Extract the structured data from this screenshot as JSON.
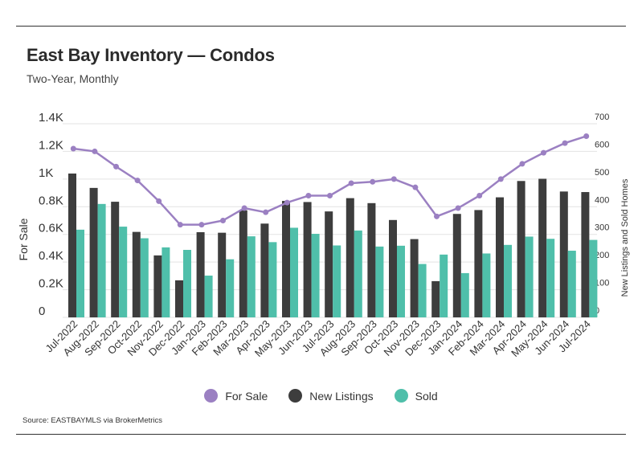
{
  "header": {
    "title": "East Bay Inventory — Condos",
    "subtitle": "Two-Year, Monthly"
  },
  "source": "Source:  EASTBAYMLS via BrokerMetrics",
  "colors": {
    "for_sale": "#9b80c2",
    "new_listings": "#3d3d3d",
    "sold": "#4fbfaa",
    "grid": "#e3e3e3"
  },
  "chart_data": {
    "type": "bar",
    "categories": [
      "Jul-2022",
      "Aug-2022",
      "Sep-2022",
      "Oct-2022",
      "Nov-2022",
      "Dec-2022",
      "Jan-2023",
      "Feb-2023",
      "Mar-2023",
      "Apr-2023",
      "May-2023",
      "Jun-2023",
      "Jul-2023",
      "Aug-2023",
      "Sep-2023",
      "Oct-2023",
      "Nov-2023",
      "Dec-2023",
      "Jan-2024",
      "Feb-2024",
      "Mar-2024",
      "Apr-2024",
      "May-2024",
      "Jun-2024",
      "Jul-2024"
    ],
    "ylabel_left": "For Sale",
    "ylabel_right": "New Listings and Sold Homes",
    "y_left": {
      "lim": [
        0,
        1400
      ],
      "ticks": [
        "0",
        "0.2K",
        "0.4K",
        "0.6K",
        "0.8K",
        "1K",
        "1.2K",
        "1.4K"
      ]
    },
    "y_right": {
      "lim": [
        0,
        700
      ],
      "ticks": [
        "0",
        "100",
        "200",
        "300",
        "400",
        "500",
        "600",
        "700"
      ]
    },
    "grid": true,
    "legend_position": "bottom",
    "series": [
      {
        "name": "For Sale",
        "type": "line",
        "axis": "left",
        "values": [
          1220,
          1200,
          1090,
          990,
          840,
          670,
          670,
          700,
          790,
          760,
          830,
          880,
          880,
          970,
          980,
          1000,
          940,
          730,
          790,
          880,
          1000,
          1110,
          1190,
          1260,
          1310
        ]
      },
      {
        "name": "New Listings",
        "type": "bar",
        "axis": "right",
        "values": [
          520,
          468,
          418,
          309,
          224,
          134,
          308,
          306,
          387,
          339,
          421,
          417,
          383,
          431,
          413,
          352,
          283,
          131,
          374,
          388,
          434,
          493,
          501,
          455,
          453
        ]
      },
      {
        "name": "Sold",
        "type": "bar",
        "axis": "right",
        "values": [
          317,
          410,
          328,
          286,
          253,
          244,
          151,
          210,
          293,
          272,
          324,
          302,
          260,
          314,
          256,
          259,
          193,
          227,
          160,
          231,
          262,
          292,
          284,
          241,
          280
        ]
      }
    ]
  }
}
